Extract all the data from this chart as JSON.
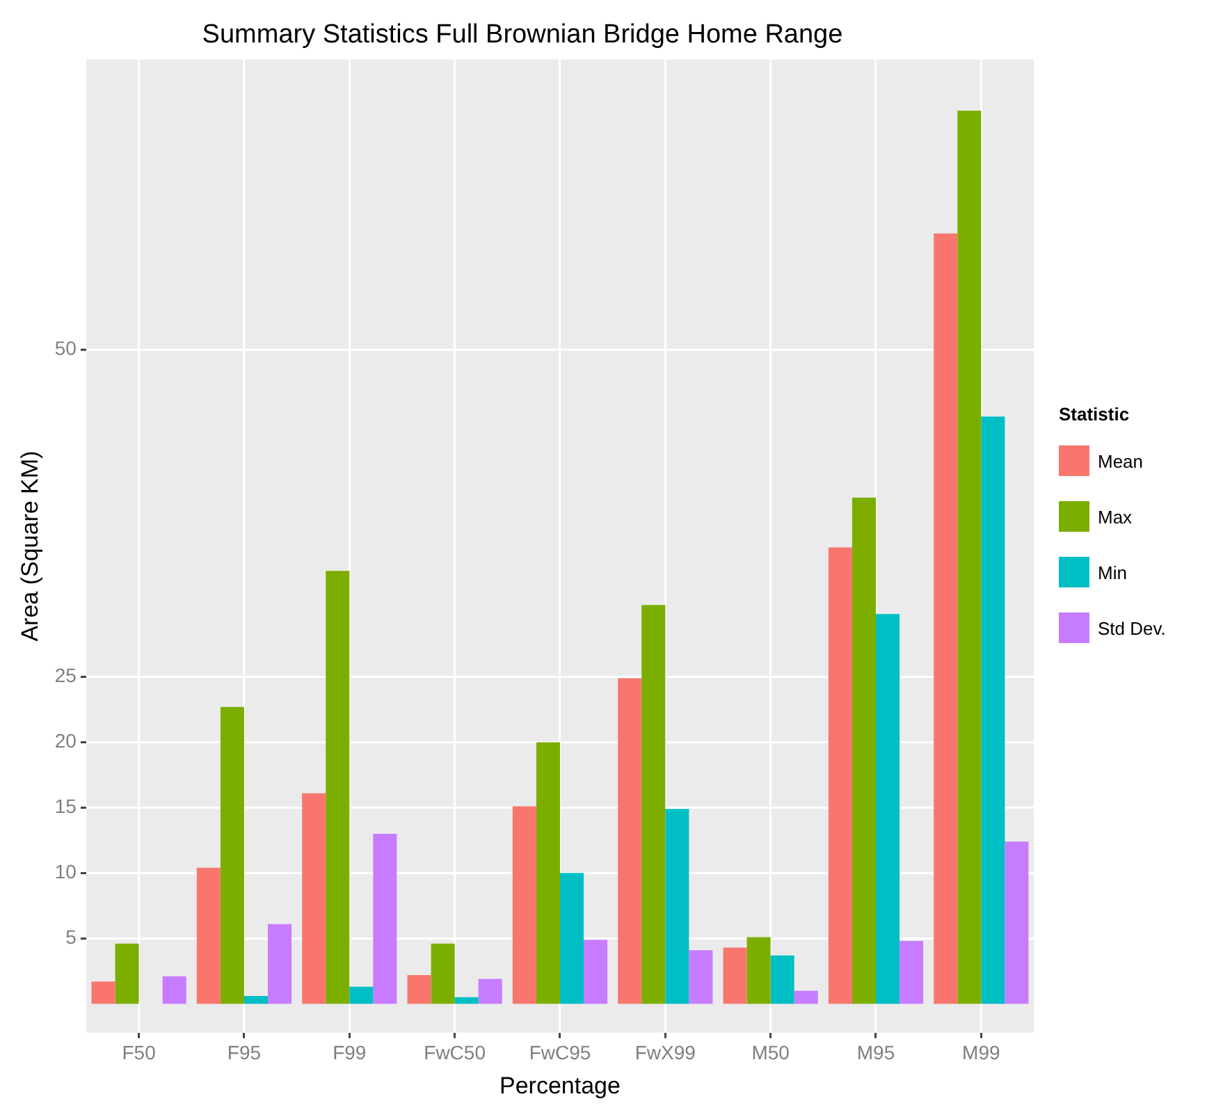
{
  "chart_data": {
    "type": "bar",
    "title": "Summary Statistics Full Brownian Bridge Home Range",
    "xlabel": "Percentage",
    "ylabel": "Area (Square KM)",
    "legend_title": "Statistic",
    "categories": [
      "F50",
      "F95",
      "F99",
      "FwC50",
      "FwC95",
      "FwX99",
      "M50",
      "M95",
      "M99"
    ],
    "series": [
      {
        "name": "Mean",
        "color": "#f8766d",
        "values": [
          1.7,
          10.4,
          16.1,
          2.2,
          15.1,
          24.9,
          4.3,
          34.9,
          58.9
        ]
      },
      {
        "name": "Max",
        "color": "#7cae00",
        "values": [
          4.6,
          22.7,
          33.1,
          4.6,
          20.0,
          30.5,
          5.1,
          38.7,
          68.3
        ]
      },
      {
        "name": "Min",
        "color": "#00bfc4",
        "values": [
          null,
          0.6,
          1.3,
          0.5,
          10.0,
          14.9,
          3.7,
          29.8,
          44.9
        ]
      },
      {
        "name": "Std Dev.",
        "color": "#c77cff",
        "values": [
          2.1,
          6.1,
          13.0,
          1.9,
          4.9,
          4.1,
          1.0,
          4.8,
          12.4
        ]
      }
    ],
    "ylim": [
      -2.2,
      72.2
    ],
    "yticks": [
      5,
      10,
      15,
      20,
      25,
      50
    ],
    "grid": true,
    "legend": "right"
  }
}
